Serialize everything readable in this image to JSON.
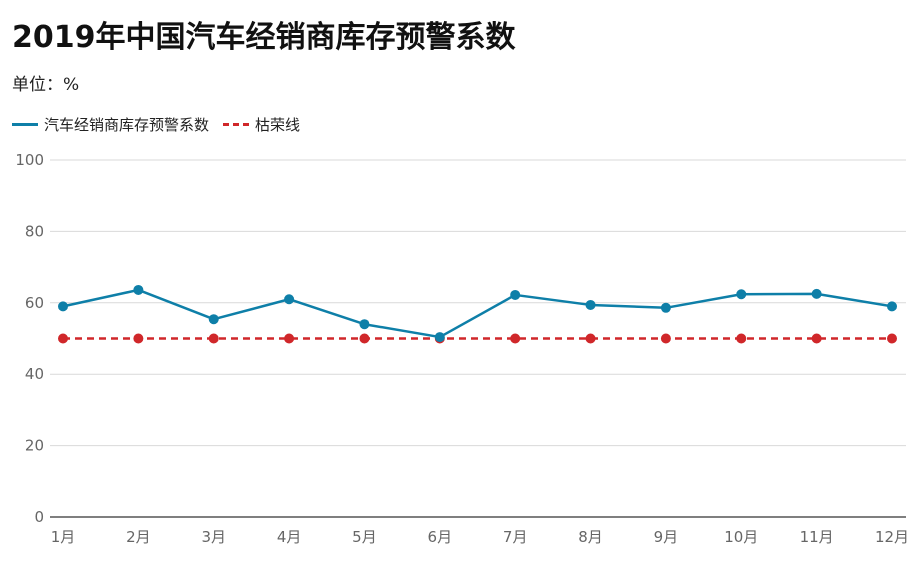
{
  "title": "2019年中国汽车经销商库存预警系数",
  "unit_label": "单位：%",
  "colors": {
    "index": "#0e7fa8",
    "threshold": "#d0272a",
    "grid": "#d9d9d9",
    "axis": "#333333"
  },
  "chart_data": {
    "type": "line",
    "title": "2019年中国汽车经销商库存预警系数",
    "categories": [
      "1月",
      "2月",
      "3月",
      "4月",
      "5月",
      "6月",
      "7月",
      "8月",
      "9月",
      "10月",
      "11月",
      "12月"
    ],
    "series": [
      {
        "name": "汽车经销商库存预警系数",
        "values": [
          59.0,
          63.6,
          55.4,
          61.0,
          54.0,
          50.4,
          62.2,
          59.4,
          58.6,
          62.4,
          62.5,
          59.0
        ],
        "style": "solid"
      },
      {
        "name": "枯荣线",
        "values": [
          50,
          50,
          50,
          50,
          50,
          50,
          50,
          50,
          50,
          50,
          50,
          50
        ],
        "style": "dashed"
      }
    ],
    "ylim": [
      0,
      100
    ],
    "yticks": [
      0,
      20,
      40,
      60,
      80,
      100
    ],
    "grid": true,
    "legend": "top-left"
  }
}
